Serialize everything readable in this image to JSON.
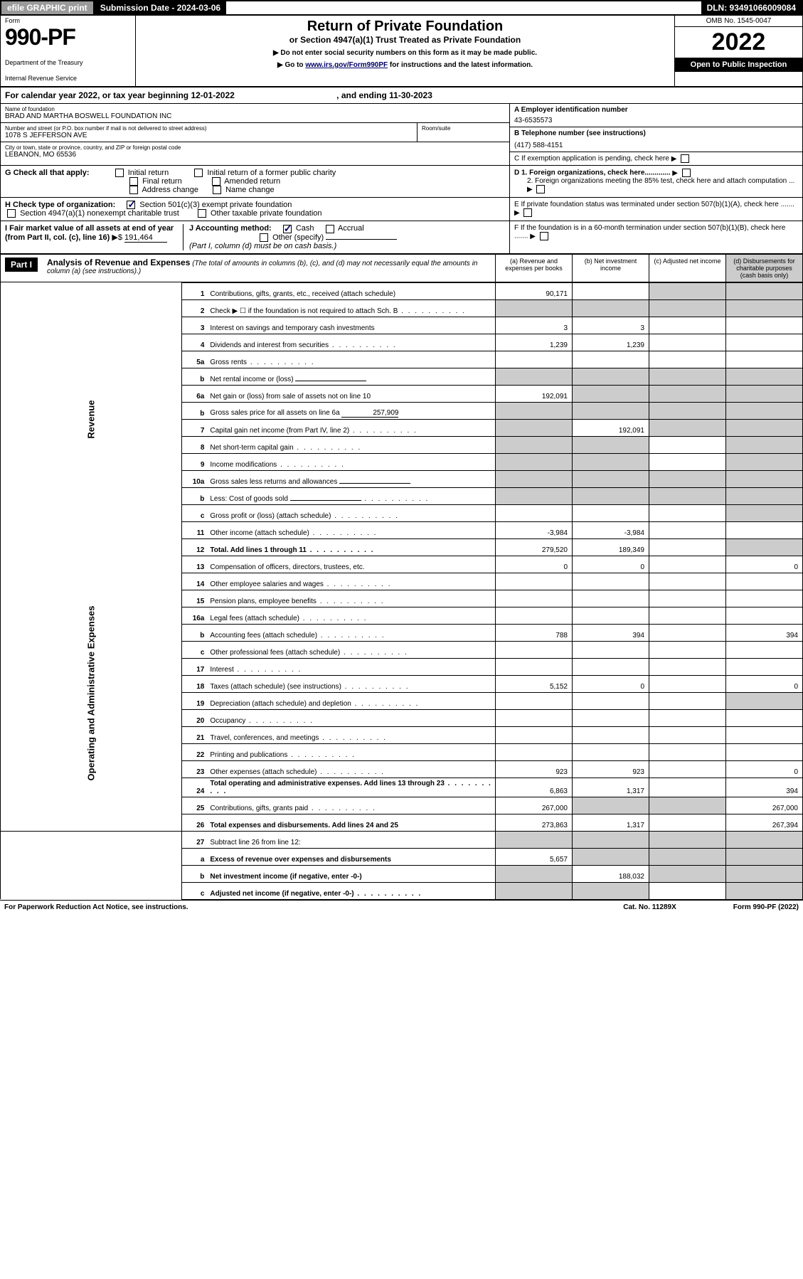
{
  "topbar": {
    "efile": "efile GRAPHIC print",
    "sub_label": "Submission Date - 2024-03-06",
    "dln": "DLN: 93491066009084"
  },
  "form": {
    "label": "Form",
    "number": "990-PF",
    "dept": "Department of the Treasury",
    "irs": "Internal Revenue Service"
  },
  "title": {
    "main": "Return of Private Foundation",
    "sub": "or Section 4947(a)(1) Trust Treated as Private Foundation",
    "line1": "▶ Do not enter social security numbers on this form as it may be made public.",
    "line2a": "▶ Go to ",
    "link": "www.irs.gov/Form990PF",
    "line2b": " for instructions and the latest information."
  },
  "yearbox": {
    "omb": "OMB No. 1545-0047",
    "year": "2022",
    "open": "Open to Public Inspection"
  },
  "calyear": {
    "text1": "For calendar year 2022, or tax year beginning 12-01-2022",
    "text2": ", and ending 11-30-2023"
  },
  "entity": {
    "name_lbl": "Name of foundation",
    "name": "BRAD AND MARTHA BOSWELL FOUNDATION INC",
    "addr_lbl": "Number and street (or P.O. box number if mail is not delivered to street address)",
    "addr": "1078 S JEFFERSON AVE",
    "room_lbl": "Room/suite",
    "city_lbl": "City or town, state or province, country, and ZIP or foreign postal code",
    "city": "LEBANON, MO  65536",
    "ein_lbl": "A Employer identification number",
    "ein": "43-6535573",
    "tel_lbl": "B Telephone number (see instructions)",
    "tel": "(417) 588-4151",
    "c": "C If exemption application is pending, check here",
    "d1": "D 1. Foreign organizations, check here.............",
    "d2": "2. Foreign organizations meeting the 85% test, check here and attach computation ...",
    "e": "E  If private foundation status was terminated under section 507(b)(1)(A), check here .......",
    "f": "F  If the foundation is in a 60-month termination under section 507(b)(1)(B), check here ......."
  },
  "g": {
    "label": "G Check all that apply:",
    "opts": [
      "Initial return",
      "Initial return of a former public charity",
      "Final return",
      "Amended return",
      "Address change",
      "Name change"
    ]
  },
  "h": {
    "label": "H Check type of organization:",
    "o1": "Section 501(c)(3) exempt private foundation",
    "o2": "Section 4947(a)(1) nonexempt charitable trust",
    "o3": "Other taxable private foundation"
  },
  "i": {
    "label": "I Fair market value of all assets at end of year (from Part II, col. (c), line 16)",
    "val": "191,464"
  },
  "j": {
    "label": "J Accounting method:",
    "cash": "Cash",
    "accrual": "Accrual",
    "other": "Other (specify)",
    "note": "(Part I, column (d) must be on cash basis.)"
  },
  "part1": {
    "label": "Part I",
    "title": "Analysis of Revenue and Expenses",
    "note": "(The total of amounts in columns (b), (c), and (d) may not necessarily equal the amounts in column (a) (see instructions).)",
    "cols": {
      "a": "(a)   Revenue and expenses per books",
      "b": "(b)   Net investment income",
      "c": "(c)   Adjusted net income",
      "d": "(d)  Disbursements for charitable purposes (cash basis only)"
    }
  },
  "sidebars": {
    "rev": "Revenue",
    "exp": "Operating and Administrative Expenses"
  },
  "rows": [
    {
      "n": "1",
      "d": "Contributions, gifts, grants, etc., received (attach schedule)",
      "a": "90,171",
      "c_grey": true,
      "d_grey": true
    },
    {
      "n": "2",
      "d": "Check ▶ ☐ if the foundation is not required to attach Sch. B",
      "all_grey": true,
      "dots": true
    },
    {
      "n": "3",
      "d": "Interest on savings and temporary cash investments",
      "a": "3",
      "b": "3"
    },
    {
      "n": "4",
      "d": "Dividends and interest from securities",
      "a": "1,239",
      "b": "1,239",
      "dots": true
    },
    {
      "n": "5a",
      "d": "Gross rents",
      "dots": true
    },
    {
      "n": "b",
      "d": "Net rental income or (loss)",
      "inline_box": true,
      "all_grey": true
    },
    {
      "n": "6a",
      "d": "Net gain or (loss) from sale of assets not on line 10",
      "a": "192,091",
      "b_grey": true,
      "c_grey": true,
      "d_grey": true
    },
    {
      "n": "b",
      "d": "Gross sales price for all assets on line 6a",
      "inline_val": "257,909",
      "all_grey": true
    },
    {
      "n": "7",
      "d": "Capital gain net income (from Part IV, line 2)",
      "a_grey": true,
      "b": "192,091",
      "c_grey": true,
      "d_grey": true,
      "dots": true
    },
    {
      "n": "8",
      "d": "Net short-term capital gain",
      "a_grey": true,
      "b_grey": true,
      "d_grey": true,
      "dots": true
    },
    {
      "n": "9",
      "d": "Income modifications",
      "a_grey": true,
      "b_grey": true,
      "d_grey": true,
      "dots": true
    },
    {
      "n": "10a",
      "d": "Gross sales less returns and allowances",
      "inline_box": true,
      "all_grey": true
    },
    {
      "n": "b",
      "d": "Less: Cost of goods sold",
      "inline_box": true,
      "all_grey": true,
      "dots": true
    },
    {
      "n": "c",
      "d": "Gross profit or (loss) (attach schedule)",
      "d_grey": true,
      "dots": true
    },
    {
      "n": "11",
      "d": "Other income (attach schedule)",
      "a": "-3,984",
      "b": "-3,984",
      "dots": true
    },
    {
      "n": "12",
      "d": "Total. Add lines 1 through 11",
      "bold": true,
      "a": "279,520",
      "b": "189,349",
      "d_grey": true,
      "dots": true
    },
    {
      "n": "13",
      "d": "Compensation of officers, directors, trustees, etc.",
      "a": "0",
      "b": "0",
      "dd": "0",
      "section": "exp"
    },
    {
      "n": "14",
      "d": "Other employee salaries and wages",
      "dots": true
    },
    {
      "n": "15",
      "d": "Pension plans, employee benefits",
      "dots": true
    },
    {
      "n": "16a",
      "d": "Legal fees (attach schedule)",
      "dots": true
    },
    {
      "n": "b",
      "d": "Accounting fees (attach schedule)",
      "a": "788",
      "b": "394",
      "dd": "394",
      "dots": true
    },
    {
      "n": "c",
      "d": "Other professional fees (attach schedule)",
      "dots": true
    },
    {
      "n": "17",
      "d": "Interest",
      "dots": true
    },
    {
      "n": "18",
      "d": "Taxes (attach schedule) (see instructions)",
      "a": "5,152",
      "b": "0",
      "dd": "0",
      "dots": true
    },
    {
      "n": "19",
      "d": "Depreciation (attach schedule) and depletion",
      "d_grey": true,
      "dots": true
    },
    {
      "n": "20",
      "d": "Occupancy",
      "dots": true
    },
    {
      "n": "21",
      "d": "Travel, conferences, and meetings",
      "dots": true
    },
    {
      "n": "22",
      "d": "Printing and publications",
      "dots": true
    },
    {
      "n": "23",
      "d": "Other expenses (attach schedule)",
      "a": "923",
      "b": "923",
      "dd": "0",
      "dots": true
    },
    {
      "n": "24",
      "d": "Total operating and administrative expenses. Add lines 13 through 23",
      "bold": true,
      "a": "6,863",
      "b": "1,317",
      "dd": "394",
      "dots": true
    },
    {
      "n": "25",
      "d": "Contributions, gifts, grants paid",
      "a": "267,000",
      "b_grey": true,
      "c_grey": true,
      "dd": "267,000",
      "dots": true
    },
    {
      "n": "26",
      "d": "Total expenses and disbursements. Add lines 24 and 25",
      "bold": true,
      "a": "273,863",
      "b": "1,317",
      "dd": "267,394"
    },
    {
      "n": "27",
      "d": "Subtract line 26 from line 12:",
      "all_grey": true,
      "section": "net"
    },
    {
      "n": "a",
      "d": "Excess of revenue over expenses and disbursements",
      "bold": true,
      "a": "5,657",
      "b_grey": true,
      "c_grey": true,
      "d_grey": true
    },
    {
      "n": "b",
      "d": "Net investment income (if negative, enter -0-)",
      "bold": true,
      "a_grey": true,
      "b": "188,032",
      "c_grey": true,
      "d_grey": true
    },
    {
      "n": "c",
      "d": "Adjusted net income (if negative, enter -0-)",
      "bold": true,
      "a_grey": true,
      "b_grey": true,
      "d_grey": true,
      "dots": true
    }
  ],
  "footer": {
    "l": "For Paperwork Reduction Act Notice, see instructions.",
    "m": "Cat. No. 11289X",
    "r": "Form 990-PF (2022)"
  }
}
